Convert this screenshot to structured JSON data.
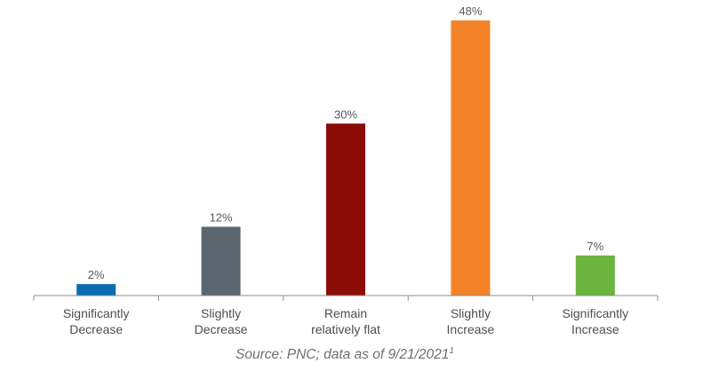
{
  "chart_data": {
    "type": "bar",
    "categories": [
      [
        "Significantly",
        "Decrease"
      ],
      [
        "Slightly",
        "Decrease"
      ],
      [
        "Remain",
        "relatively flat"
      ],
      [
        "Slightly",
        "Increase"
      ],
      [
        "Significantly",
        "Increase"
      ]
    ],
    "values": [
      2,
      12,
      30,
      48,
      7
    ],
    "value_labels": [
      "2%",
      "12%",
      "30%",
      "48%",
      "7%"
    ],
    "colors": [
      "#0a6db4",
      "#5a6670",
      "#8c0c06",
      "#f5832a",
      "#6db33f"
    ],
    "ylim": [
      0,
      50
    ],
    "grid": false,
    "legend": "none"
  },
  "source": {
    "text": "Source: PNC; data as of 9/21/2021",
    "superscript": "1"
  }
}
